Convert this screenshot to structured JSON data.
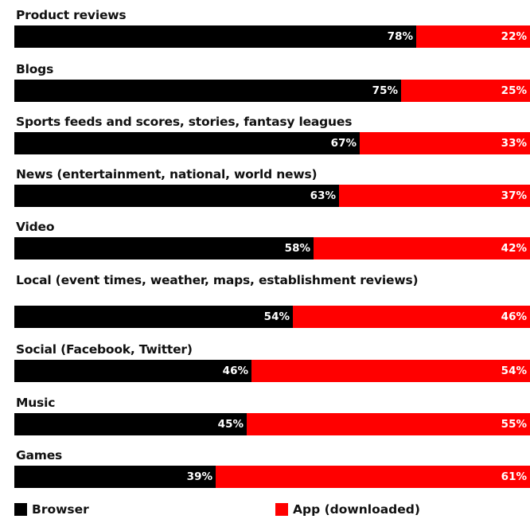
{
  "chart_data": {
    "type": "bar",
    "orientation": "horizontal",
    "stacked": true,
    "percent_stacked": true,
    "categories": [
      "Product reviews",
      "Blogs",
      "Sports feeds and scores, stories, fantasy leagues",
      "News (entertainment, national, world news)",
      "Video",
      "Local (event times, weather, maps, establishment reviews)",
      "Social (Facebook, Twitter)",
      "Music",
      "Games"
    ],
    "series": [
      {
        "name": "Browser",
        "color": "#000000",
        "values": [
          78,
          75,
          67,
          63,
          58,
          54,
          46,
          45,
          39
        ]
      },
      {
        "name": "App (downloaded)",
        "color": "#ff0000",
        "values": [
          22,
          25,
          33,
          37,
          42,
          46,
          54,
          55,
          61
        ]
      }
    ],
    "value_suffix": "%",
    "legend_position": "bottom",
    "grid": false
  }
}
